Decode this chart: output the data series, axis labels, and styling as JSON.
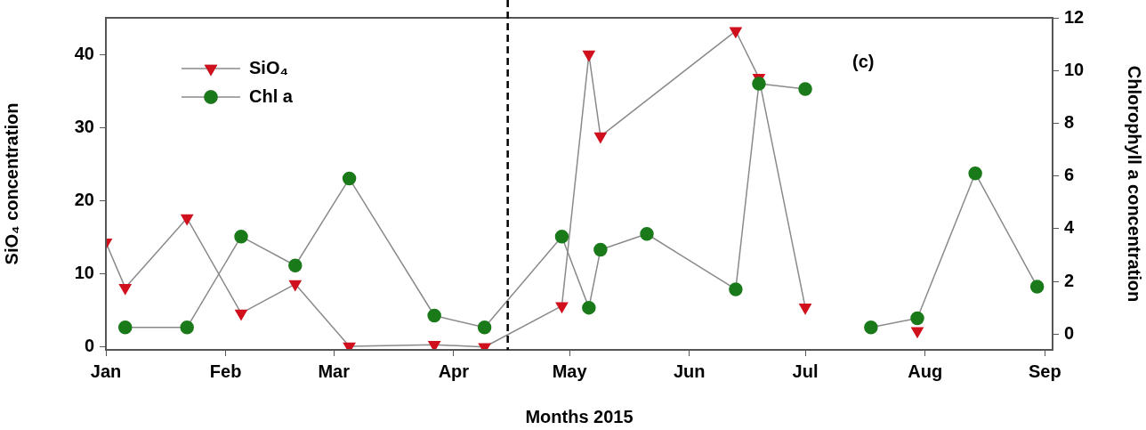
{
  "chart_data": {
    "type": "line",
    "xlabel": "Months 2015",
    "ylabel": "SiO₄ concentration",
    "y2label": "Chlorophyll a concentration",
    "annotations": [
      "(c)"
    ],
    "xlim": [
      "2015-01-01",
      "2015-09-03"
    ],
    "xticks": [
      {
        "value": "2015-01-01",
        "label": "Jan"
      },
      {
        "value": "2015-02-01",
        "label": "Feb"
      },
      {
        "value": "2015-03-01",
        "label": "Mar"
      },
      {
        "value": "2015-04-01",
        "label": "Apr"
      },
      {
        "value": "2015-05-01",
        "label": "May"
      },
      {
        "value": "2015-06-01",
        "label": "Jun"
      },
      {
        "value": "2015-07-01",
        "label": "Jul"
      },
      {
        "value": "2015-08-01",
        "label": "Aug"
      },
      {
        "value": "2015-09-01",
        "label": "Sep"
      }
    ],
    "ylim": [
      -0.4,
      45
    ],
    "yticks": [
      0,
      10,
      20,
      30,
      40
    ],
    "y2lim": [
      -0.6,
      12
    ],
    "y2ticks": [
      0,
      2,
      4,
      6,
      8,
      10,
      12
    ],
    "grid": false,
    "legend": "top left",
    "ref_lines": [
      {
        "axis": "x",
        "value": "2015-04-15",
        "color": "#000000",
        "line_style": "dashed"
      }
    ],
    "series": [
      {
        "name": "SiO₄",
        "color": "#d0101c",
        "marker": "triangle",
        "x": [
          "2015-01-01",
          "2015-01-06",
          "2015-01-22",
          "2015-02-05",
          "2015-02-19",
          "2015-03-05",
          "2015-03-27",
          "2015-04-09",
          "2015-04-29",
          "2015-05-06",
          "2015-05-09",
          "2015-06-13",
          "2015-06-19",
          "2015-07-01",
          "2015-07-09",
          "2015-07-18",
          "2015-07-30"
        ],
        "values": [
          14.3,
          8.1,
          17.6,
          4.6,
          8.6,
          0.1,
          0.3,
          0,
          5.6,
          40,
          28.8,
          43.2,
          36.8,
          5.4,
          null,
          null,
          2.2
        ]
      },
      {
        "name": "Chl a",
        "color": "#1a7a1a",
        "marker": "circle",
        "axis": "y2",
        "x": [
          "2015-01-06",
          "2015-01-22",
          "2015-02-05",
          "2015-02-19",
          "2015-03-05",
          "2015-03-27",
          "2015-04-09",
          "2015-04-29",
          "2015-05-06",
          "2015-05-09",
          "2015-05-21",
          "2015-06-13",
          "2015-06-19",
          "2015-07-01",
          "2015-07-09",
          "2015-07-18",
          "2015-07-30",
          "2015-08-14",
          "2015-08-30"
        ],
        "values": [
          0.25,
          0.25,
          3.7,
          2.6,
          5.9,
          0.7,
          0.25,
          3.7,
          1.0,
          3.2,
          3.8,
          1.7,
          9.5,
          9.3,
          null,
          0.25,
          0.6,
          6.1,
          1.8
        ]
      }
    ]
  }
}
